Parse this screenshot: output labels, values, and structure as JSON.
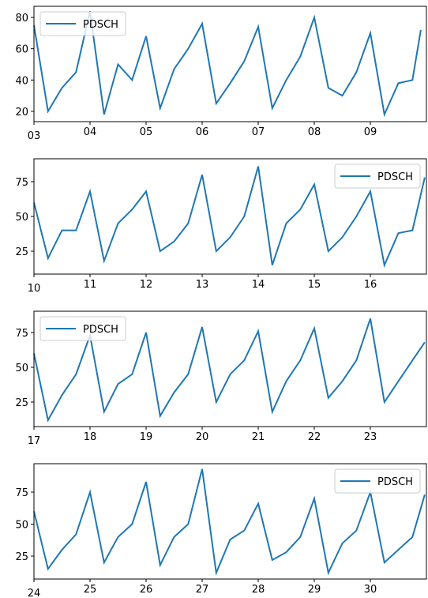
{
  "chart_data": [
    {
      "type": "line",
      "legend": "upper left",
      "x": [
        3,
        3.25,
        3.5,
        3.75,
        4,
        4.25,
        4.5,
        4.75,
        5,
        5.25,
        5.5,
        5.75,
        6,
        6.25,
        6.5,
        6.75,
        7,
        7.25,
        7.5,
        7.75,
        8,
        8.25,
        8.5,
        8.75,
        9,
        9.25,
        9.5,
        9.75,
        9.9
      ],
      "series": [
        {
          "name": "PDSCH",
          "color": "#1f77b4",
          "values": [
            75,
            20,
            35,
            45,
            84,
            18,
            50,
            40,
            68,
            22,
            47,
            60,
            76,
            25,
            38,
            52,
            74,
            22,
            40,
            55,
            80,
            35,
            30,
            45,
            70,
            18,
            38,
            40,
            72
          ]
        }
      ],
      "xlim": [
        3,
        10
      ],
      "ylim": [
        13.4,
        87.1
      ],
      "xticks": [
        {
          "value": 3,
          "label": "03"
        },
        {
          "value": 4,
          "label": "04"
        },
        {
          "value": 5,
          "label": "05"
        },
        {
          "value": 6,
          "label": "06"
        },
        {
          "value": 7,
          "label": "07"
        },
        {
          "value": 8,
          "label": "08"
        },
        {
          "value": 9,
          "label": "09"
        }
      ],
      "yticks": [
        20,
        40,
        60,
        80
      ]
    },
    {
      "type": "line",
      "legend": "upper right",
      "x": [
        10,
        10.25,
        10.5,
        10.75,
        11,
        11.25,
        11.5,
        11.75,
        12,
        12.25,
        12.5,
        12.75,
        13,
        13.25,
        13.5,
        13.75,
        14,
        14.25,
        14.5,
        14.75,
        15,
        15.25,
        15.5,
        15.75,
        16,
        16.25,
        16.5,
        16.75,
        16.97
      ],
      "series": [
        {
          "name": "PDSCH",
          "color": "#1f77b4",
          "values": [
            60,
            20,
            40,
            40,
            68,
            18,
            45,
            55,
            68,
            25,
            32,
            45,
            80,
            25,
            35,
            50,
            86,
            15,
            45,
            55,
            73,
            25,
            35,
            50,
            68,
            15,
            38,
            40,
            78
          ]
        }
      ],
      "xlim": [
        10,
        17
      ],
      "ylim": [
        8.5,
        91.5
      ],
      "xticks": [
        10,
        11,
        12,
        13,
        14,
        15,
        16
      ],
      "yticks": [
        25,
        50,
        75
      ]
    },
    {
      "type": "line",
      "legend": "upper left",
      "x": [
        17,
        17.25,
        17.5,
        17.75,
        18,
        18.25,
        18.5,
        18.75,
        19,
        19.25,
        19.5,
        19.75,
        20,
        20.25,
        20.5,
        20.75,
        21,
        21.25,
        21.5,
        21.75,
        22,
        22.25,
        22.5,
        22.75,
        23,
        23.25,
        23.5,
        23.75,
        23.97
      ],
      "series": [
        {
          "name": "PDSCH",
          "color": "#1f77b4",
          "values": [
            60,
            12,
            30,
            45,
            73,
            18,
            38,
            45,
            75,
            15,
            32,
            45,
            79,
            25,
            45,
            55,
            76,
            18,
            40,
            55,
            78,
            28,
            40,
            55,
            85,
            25,
            40,
            55,
            68
          ]
        }
      ],
      "xlim": [
        17,
        24
      ],
      "ylim": [
        7.4,
        90.3
      ],
      "xticks": [
        17,
        18,
        19,
        20,
        21,
        22,
        23
      ],
      "yticks": [
        25,
        50,
        75
      ]
    },
    {
      "type": "line",
      "legend": "upper right",
      "x": [
        24,
        24.25,
        24.5,
        24.75,
        25,
        25.25,
        25.5,
        25.75,
        26,
        26.25,
        26.5,
        26.75,
        27,
        27.25,
        27.5,
        27.75,
        28,
        28.25,
        28.5,
        28.75,
        29,
        29.25,
        29.5,
        29.75,
        30,
        30.25,
        30.5,
        30.75,
        30.97
      ],
      "series": [
        {
          "name": "PDSCH",
          "color": "#1f77b4",
          "values": [
            60,
            15,
            30,
            42,
            75,
            20,
            40,
            50,
            83,
            18,
            40,
            50,
            93,
            12,
            38,
            45,
            66,
            22,
            28,
            40,
            70,
            12,
            35,
            45,
            75,
            20,
            30,
            40,
            73
          ]
        }
      ],
      "xlim": [
        24,
        31
      ],
      "ylim": [
        7.1,
        97.2
      ],
      "xticks": [
        24,
        25,
        26,
        27,
        28,
        29,
        30
      ],
      "yticks": [
        25,
        50,
        75
      ]
    }
  ]
}
